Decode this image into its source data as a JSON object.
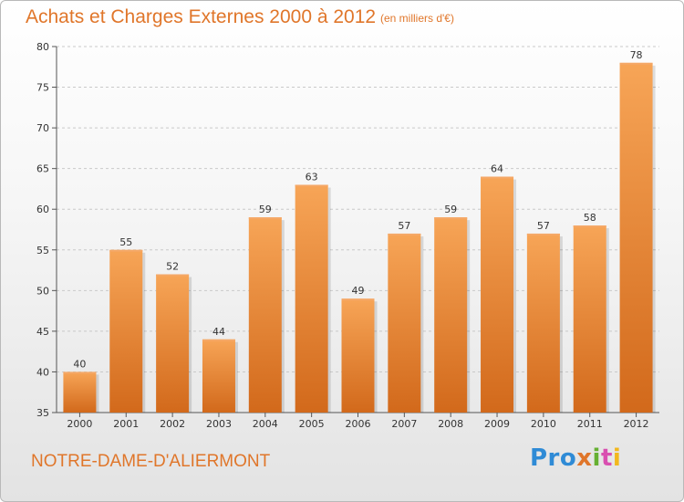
{
  "chart_data": {
    "type": "bar",
    "title": "Achats et Charges Externes 2000 à 2012",
    "subtitle": "(en milliers d'€)",
    "categories": [
      "2000",
      "2001",
      "2002",
      "2003",
      "2004",
      "2005",
      "2006",
      "2007",
      "2008",
      "2009",
      "2010",
      "2011",
      "2012"
    ],
    "values": [
      40,
      55,
      52,
      44,
      59,
      63,
      49,
      57,
      59,
      64,
      57,
      58,
      78
    ],
    "ylim": [
      35,
      80
    ],
    "yticks": [
      "35",
      "40",
      "45",
      "50",
      "55",
      "60",
      "65",
      "70",
      "75",
      "80"
    ],
    "grid": true,
    "bar_color": "#e07d28"
  },
  "footer": {
    "place_name": "NOTRE-DAME-D'ALIERMONT",
    "logo_parts": [
      "Pro",
      "x",
      "i",
      "t",
      "i"
    ]
  }
}
